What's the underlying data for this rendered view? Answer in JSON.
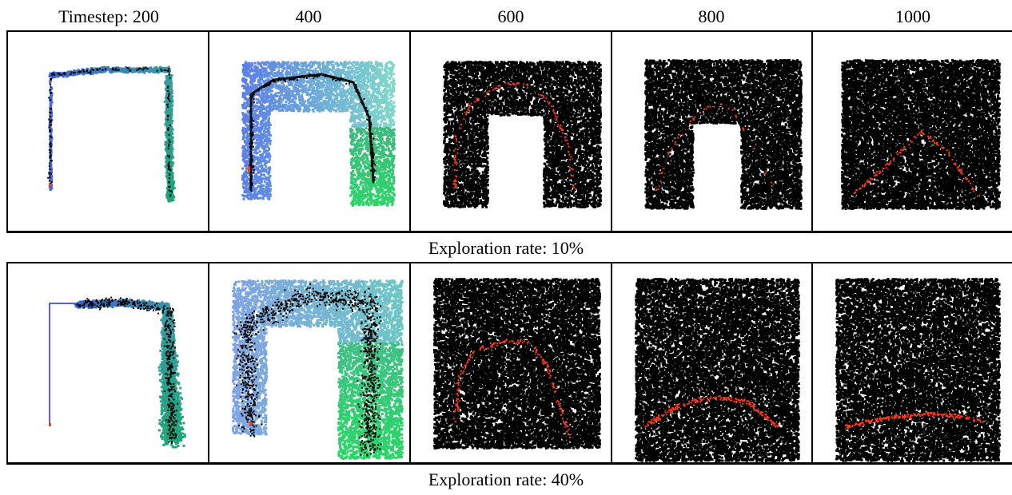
{
  "column_headers": [
    "Timestep: 200",
    "400",
    "600",
    "800",
    "1000"
  ],
  "rows": [
    {
      "caption": "Exploration rate: 10%"
    },
    {
      "caption": "Exploration rate: 40%"
    }
  ],
  "colors": {
    "start_blue": "#1f3be0",
    "end_green": "#2bd567",
    "top_cyan": "#7fd9c9",
    "light_blue": "#a8c6ee",
    "path_red": "#ff3a1a",
    "dots": "#000000",
    "guide_line": "#5a5aff"
  }
}
